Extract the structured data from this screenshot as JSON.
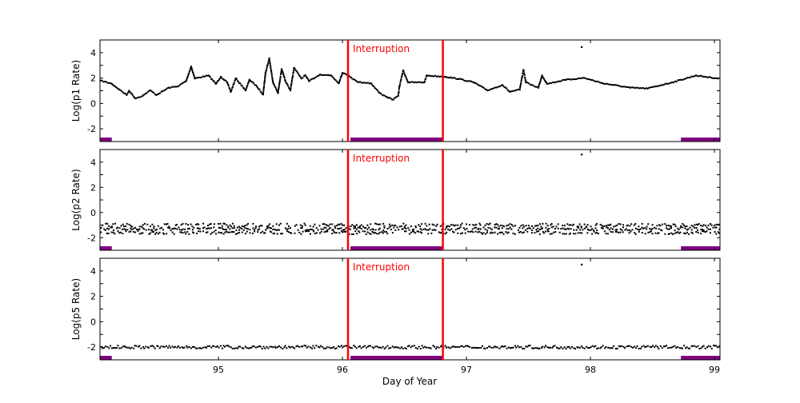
{
  "chart_data": {
    "type": "scatter",
    "xlabel": "Day of Year",
    "xlim": [
      94.045,
      99.045
    ],
    "xticks": [
      95,
      96,
      97,
      98,
      99
    ],
    "grid": false,
    "colors": {
      "points": "#000000",
      "interruption": "#ff0000",
      "coverage_bar": "#800080"
    },
    "interruption": {
      "label": "Interruption",
      "start": 96.045,
      "end": 96.81
    },
    "coverage_bars": [
      [
        94.045,
        94.14
      ],
      [
        96.065,
        96.81
      ],
      [
        98.73,
        99.045
      ]
    ],
    "panels": [
      {
        "ylabel": "Log(p1 Rate)",
        "ylim": [
          -3,
          5
        ],
        "yticks": [
          -2,
          0,
          2,
          4
        ],
        "points": [
          [
            94.05,
            1.8
          ],
          [
            94.14,
            1.55
          ],
          [
            94.2,
            1.1
          ],
          [
            94.26,
            0.67
          ],
          [
            94.28,
            1.0
          ],
          [
            94.33,
            0.4
          ],
          [
            94.39,
            0.61
          ],
          [
            94.45,
            1.03
          ],
          [
            94.5,
            0.67
          ],
          [
            94.6,
            1.24
          ],
          [
            94.67,
            1.34
          ],
          [
            94.74,
            1.76
          ],
          [
            94.78,
            2.9
          ],
          [
            94.81,
            1.97
          ],
          [
            94.92,
            2.2
          ],
          [
            94.98,
            1.55
          ],
          [
            95.02,
            2.1
          ],
          [
            95.07,
            1.66
          ],
          [
            95.1,
            0.92
          ],
          [
            95.14,
            1.97
          ],
          [
            95.22,
            1.03
          ],
          [
            95.25,
            1.87
          ],
          [
            95.31,
            1.34
          ],
          [
            95.36,
            0.71
          ],
          [
            95.38,
            2.4
          ],
          [
            95.41,
            3.55
          ],
          [
            95.44,
            1.66
          ],
          [
            95.48,
            0.82
          ],
          [
            95.51,
            2.7
          ],
          [
            95.54,
            1.76
          ],
          [
            95.58,
            1.03
          ],
          [
            95.61,
            2.8
          ],
          [
            95.67,
            1.97
          ],
          [
            95.7,
            2.22
          ],
          [
            95.73,
            1.76
          ],
          [
            95.82,
            2.28
          ],
          [
            95.91,
            2.2
          ],
          [
            95.97,
            1.59
          ],
          [
            96.0,
            2.4
          ],
          [
            96.05,
            2.2
          ],
          [
            96.12,
            1.7
          ],
          [
            96.23,
            1.59
          ],
          [
            96.3,
            0.82
          ],
          [
            96.36,
            0.5
          ],
          [
            96.41,
            0.3
          ],
          [
            96.45,
            0.61
          ],
          [
            96.46,
            1.34
          ],
          [
            96.49,
            2.6
          ],
          [
            96.53,
            1.66
          ],
          [
            96.66,
            1.66
          ],
          [
            96.68,
            2.2
          ],
          [
            96.83,
            2.1
          ],
          [
            96.94,
            1.93
          ],
          [
            97.06,
            1.66
          ],
          [
            97.17,
            1.03
          ],
          [
            97.29,
            1.45
          ],
          [
            97.35,
            0.92
          ],
          [
            97.43,
            1.09
          ],
          [
            97.46,
            2.64
          ],
          [
            97.48,
            1.66
          ],
          [
            97.58,
            1.24
          ],
          [
            97.61,
            2.2
          ],
          [
            97.65,
            1.55
          ],
          [
            97.8,
            1.86
          ],
          [
            97.95,
            2.01
          ],
          [
            98.1,
            1.59
          ],
          [
            98.32,
            1.24
          ],
          [
            98.46,
            1.18
          ],
          [
            98.66,
            1.66
          ],
          [
            98.85,
            2.2
          ],
          [
            99.03,
            1.97
          ]
        ],
        "outliers": [
          [
            97.93,
            4.44
          ]
        ]
      },
      {
        "ylabel": "Log(p2 Rate)",
        "ylim": [
          -3,
          5
        ],
        "yticks": [
          -2,
          0,
          2,
          4
        ],
        "bands": [
          -1.0,
          -1.3,
          -1.6
        ],
        "x": [
          94.1,
          94.2,
          94.3,
          94.4,
          94.5,
          94.6,
          94.7,
          94.8,
          94.9,
          95.0,
          95.1,
          95.2,
          95.3,
          95.4,
          95.5,
          95.6,
          95.7,
          95.8,
          95.9,
          96.0,
          96.1,
          96.2,
          96.3,
          96.4,
          96.5,
          96.6,
          96.7,
          96.8,
          96.9,
          97.0,
          97.1,
          97.2,
          97.3,
          97.4,
          97.5,
          97.6,
          97.7,
          97.8,
          97.9,
          98.0,
          98.1,
          98.2,
          98.3,
          98.4,
          98.5,
          98.6,
          98.7,
          98.8,
          98.9,
          99.0
        ],
        "outliers": [
          [
            97.93,
            4.6
          ]
        ]
      },
      {
        "ylabel": "Log(p5 Rate)",
        "ylim": [
          -3,
          5
        ],
        "yticks": [
          -2,
          0,
          2,
          4
        ],
        "bands": [
          -2.0
        ],
        "x": [
          94.1,
          94.2,
          94.3,
          94.4,
          94.5,
          94.6,
          94.7,
          94.8,
          94.9,
          95.0,
          95.1,
          95.2,
          95.3,
          95.4,
          95.5,
          95.6,
          95.7,
          95.8,
          95.9,
          96.0,
          96.1,
          96.2,
          96.3,
          96.4,
          96.5,
          96.6,
          96.7,
          96.8,
          96.9,
          97.0,
          97.1,
          97.2,
          97.3,
          97.4,
          97.5,
          97.6,
          97.7,
          97.8,
          97.9,
          98.0,
          98.1,
          98.2,
          98.3,
          98.4,
          98.5,
          98.6,
          98.7,
          98.8,
          98.9,
          99.0
        ],
        "outliers": [
          [
            97.93,
            4.5
          ]
        ]
      }
    ]
  }
}
